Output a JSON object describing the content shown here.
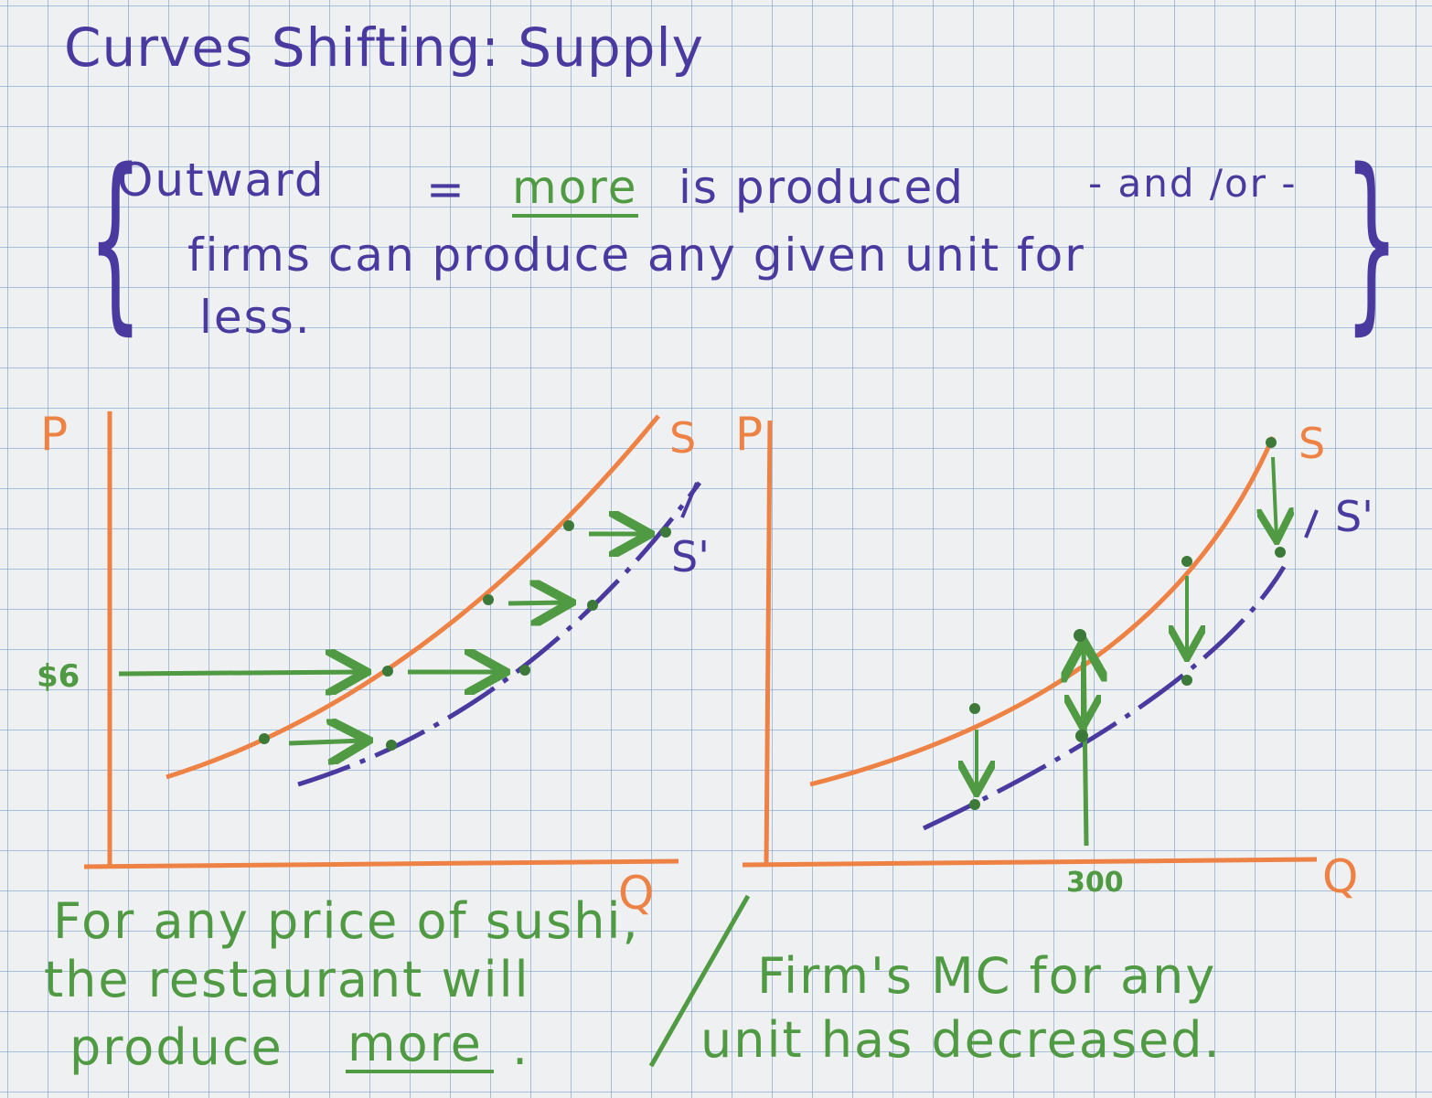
{
  "title": "Curves Shifting: Supply",
  "definition": {
    "line1_outward": "Outward",
    "line1_equals": "=",
    "line1_more": "more",
    "line1_rest": "is produced",
    "line1_andor": "- and /or -",
    "line2": "firms can produce any given unit for",
    "line3": "less."
  },
  "left_graph": {
    "y_axis_label": "P",
    "x_axis_label": "Q",
    "price_tick": "$6",
    "supply_label": "S",
    "shifted_supply_label": "S'",
    "caption_line1": "For any price of sushi,",
    "caption_line2": "the restaurant will",
    "caption_line3_a": "produce",
    "caption_line3_b": "more",
    "caption_line3_c": "."
  },
  "right_graph": {
    "y_axis_label": "P",
    "x_axis_label": "Q",
    "quantity_tick": "300",
    "supply_label": "S",
    "shifted_supply_label": "S'",
    "caption_line1": "Firm's MC for any",
    "caption_line2": "unit has decreased."
  },
  "colors": {
    "ink_purple": "#4a3aa0",
    "ink_orange": "#ee8245",
    "ink_green": "#4f9a42",
    "paper": "#eef0f1",
    "grid": "#8fb0d8"
  }
}
